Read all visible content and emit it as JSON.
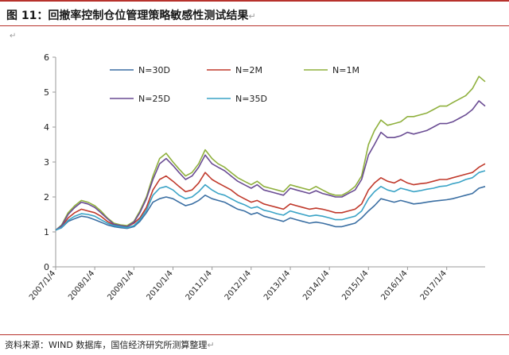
{
  "figure": {
    "title": "图 11：回撤率控制仓位管理策略敏感性测试结果",
    "para_mark": "↵",
    "source": "资料来源：WIND 数据库，国信经济研究所测算整理"
  },
  "colors": {
    "rule": "#b7322c",
    "axis": "#9a9a9a"
  },
  "chart_data": {
    "type": "line",
    "title": "",
    "xlabel": "",
    "ylabel": "",
    "ylim": [
      0,
      6
    ],
    "yticks": [
      0,
      1,
      2,
      3,
      4,
      5,
      6
    ],
    "xlim": [
      "2007-01-04",
      "2017-12-29"
    ],
    "xticks": [
      "2007/1/4",
      "2008/1/4",
      "2009/1/4",
      "2010/1/4",
      "2011/1/4",
      "2012/1/4",
      "2013/1/4",
      "2014/1/4",
      "2015/1/4",
      "2016/1/4",
      "2017/1/4"
    ],
    "grid": false,
    "legend": "top-left",
    "x": [
      "2007-01-04",
      "2007-03-01",
      "2007-05-01",
      "2007-07-01",
      "2007-09-01",
      "2007-11-01",
      "2008-01-04",
      "2008-03-01",
      "2008-05-01",
      "2008-07-01",
      "2008-09-01",
      "2008-11-01",
      "2009-01-04",
      "2009-03-01",
      "2009-05-01",
      "2009-07-01",
      "2009-09-01",
      "2009-11-01",
      "2010-01-04",
      "2010-03-01",
      "2010-05-01",
      "2010-07-01",
      "2010-09-01",
      "2010-11-01",
      "2011-01-04",
      "2011-03-01",
      "2011-05-01",
      "2011-07-01",
      "2011-09-01",
      "2011-11-01",
      "2012-01-04",
      "2012-03-01",
      "2012-05-01",
      "2012-07-01",
      "2012-09-01",
      "2012-11-01",
      "2013-01-04",
      "2013-03-01",
      "2013-05-01",
      "2013-07-01",
      "2013-09-01",
      "2013-11-01",
      "2014-01-04",
      "2014-03-01",
      "2014-05-01",
      "2014-07-01",
      "2014-09-01",
      "2014-11-01",
      "2015-01-04",
      "2015-03-01",
      "2015-05-01",
      "2015-07-01",
      "2015-09-01",
      "2015-11-01",
      "2016-01-04",
      "2016-03-01",
      "2016-05-01",
      "2016-07-01",
      "2016-09-01",
      "2016-11-01",
      "2017-01-04",
      "2017-03-01",
      "2017-05-01",
      "2017-07-01",
      "2017-09-01",
      "2017-11-01",
      "2017-12-29"
    ],
    "series": [
      {
        "name": "N=30D",
        "color": "#3b6fa3",
        "values": [
          1.05,
          1.12,
          1.3,
          1.38,
          1.45,
          1.42,
          1.35,
          1.28,
          1.2,
          1.15,
          1.12,
          1.1,
          1.15,
          1.3,
          1.55,
          1.85,
          1.95,
          2.0,
          1.95,
          1.85,
          1.75,
          1.8,
          1.9,
          2.05,
          1.95,
          1.9,
          1.85,
          1.75,
          1.65,
          1.6,
          1.5,
          1.55,
          1.45,
          1.4,
          1.35,
          1.3,
          1.4,
          1.35,
          1.3,
          1.25,
          1.28,
          1.25,
          1.2,
          1.15,
          1.15,
          1.2,
          1.25,
          1.4,
          1.6,
          1.75,
          1.95,
          1.9,
          1.85,
          1.9,
          1.85,
          1.8,
          1.82,
          1.85,
          1.88,
          1.9,
          1.92,
          1.95,
          2.0,
          2.05,
          2.1,
          2.25,
          2.3
        ]
      },
      {
        "name": "N=2M",
        "color": "#c0392b",
        "values": [
          1.05,
          1.15,
          1.4,
          1.55,
          1.65,
          1.6,
          1.55,
          1.45,
          1.3,
          1.2,
          1.18,
          1.15,
          1.25,
          1.4,
          1.7,
          2.2,
          2.5,
          2.6,
          2.45,
          2.3,
          2.15,
          2.2,
          2.4,
          2.7,
          2.5,
          2.4,
          2.3,
          2.2,
          2.05,
          1.95,
          1.85,
          1.9,
          1.8,
          1.75,
          1.7,
          1.65,
          1.8,
          1.75,
          1.7,
          1.65,
          1.68,
          1.65,
          1.6,
          1.55,
          1.55,
          1.6,
          1.65,
          1.8,
          2.2,
          2.4,
          2.55,
          2.45,
          2.4,
          2.5,
          2.4,
          2.35,
          2.38,
          2.4,
          2.45,
          2.5,
          2.5,
          2.55,
          2.6,
          2.65,
          2.7,
          2.85,
          2.95
        ]
      },
      {
        "name": "N=1M",
        "color": "#8fb03d",
        "values": [
          1.05,
          1.2,
          1.55,
          1.75,
          1.9,
          1.85,
          1.75,
          1.6,
          1.4,
          1.25,
          1.2,
          1.18,
          1.3,
          1.6,
          2.0,
          2.6,
          3.1,
          3.25,
          3.0,
          2.8,
          2.6,
          2.7,
          2.95,
          3.35,
          3.1,
          2.95,
          2.85,
          2.7,
          2.55,
          2.45,
          2.35,
          2.45,
          2.3,
          2.25,
          2.2,
          2.15,
          2.35,
          2.3,
          2.25,
          2.2,
          2.3,
          2.2,
          2.1,
          2.05,
          2.05,
          2.15,
          2.3,
          2.6,
          3.5,
          3.9,
          4.2,
          4.05,
          4.1,
          4.15,
          4.3,
          4.3,
          4.35,
          4.4,
          4.5,
          4.6,
          4.6,
          4.7,
          4.8,
          4.9,
          5.1,
          5.45,
          5.3
        ]
      },
      {
        "name": "N=25D",
        "color": "#6a4c93",
        "values": [
          1.05,
          1.18,
          1.5,
          1.7,
          1.85,
          1.8,
          1.7,
          1.55,
          1.38,
          1.22,
          1.18,
          1.15,
          1.28,
          1.55,
          1.95,
          2.5,
          2.95,
          3.1,
          2.9,
          2.7,
          2.5,
          2.6,
          2.85,
          3.2,
          2.95,
          2.85,
          2.75,
          2.6,
          2.45,
          2.35,
          2.25,
          2.35,
          2.2,
          2.15,
          2.1,
          2.05,
          2.25,
          2.2,
          2.15,
          2.1,
          2.18,
          2.1,
          2.05,
          2.0,
          2.0,
          2.1,
          2.2,
          2.5,
          3.2,
          3.5,
          3.85,
          3.7,
          3.7,
          3.75,
          3.85,
          3.8,
          3.85,
          3.9,
          4.0,
          4.1,
          4.1,
          4.15,
          4.25,
          4.35,
          4.5,
          4.75,
          4.6
        ]
      },
      {
        "name": "N=35D",
        "color": "#3aa3c6",
        "values": [
          1.05,
          1.13,
          1.33,
          1.45,
          1.52,
          1.5,
          1.45,
          1.35,
          1.25,
          1.18,
          1.15,
          1.12,
          1.18,
          1.35,
          1.62,
          2.05,
          2.25,
          2.3,
          2.2,
          2.05,
          1.95,
          2.0,
          2.15,
          2.35,
          2.2,
          2.1,
          2.05,
          1.95,
          1.85,
          1.78,
          1.68,
          1.72,
          1.62,
          1.58,
          1.52,
          1.48,
          1.6,
          1.55,
          1.5,
          1.45,
          1.48,
          1.45,
          1.4,
          1.35,
          1.35,
          1.4,
          1.45,
          1.6,
          1.95,
          2.15,
          2.3,
          2.2,
          2.15,
          2.25,
          2.2,
          2.15,
          2.18,
          2.22,
          2.25,
          2.3,
          2.32,
          2.38,
          2.42,
          2.5,
          2.55,
          2.7,
          2.75
        ]
      }
    ]
  }
}
